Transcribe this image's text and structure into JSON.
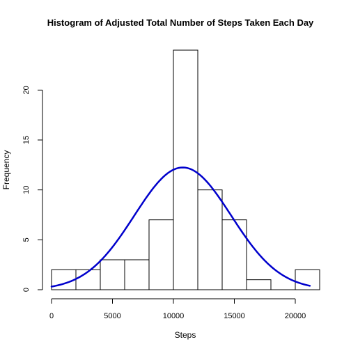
{
  "chart_data": {
    "type": "bar",
    "title": "Histogram of Adjusted Total Number of Steps Taken Each Day",
    "xlabel": "Steps",
    "ylabel": "Frequency",
    "xlim": [
      0,
      22000
    ],
    "ylim": [
      0,
      24
    ],
    "bins": [
      {
        "from": 0,
        "to": 2000,
        "count": 2
      },
      {
        "from": 2000,
        "to": 4000,
        "count": 2
      },
      {
        "from": 4000,
        "to": 6000,
        "count": 3
      },
      {
        "from": 6000,
        "to": 8000,
        "count": 3
      },
      {
        "from": 8000,
        "to": 10000,
        "count": 7
      },
      {
        "from": 10000,
        "to": 12000,
        "count": 24
      },
      {
        "from": 12000,
        "to": 14000,
        "count": 10
      },
      {
        "from": 14000,
        "to": 16000,
        "count": 7
      },
      {
        "from": 16000,
        "to": 18000,
        "count": 1
      },
      {
        "from": 18000,
        "to": 20000,
        "count": 0
      },
      {
        "from": 20000,
        "to": 22000,
        "count": 2
      }
    ],
    "x_ticks": [
      0,
      5000,
      10000,
      15000,
      20000
    ],
    "y_ticks": [
      0,
      5,
      10,
      15,
      20
    ],
    "bar_fill": "#ffffff",
    "bar_stroke": "#000000",
    "density_curve": {
      "color": "#0000cc",
      "mean": 10766,
      "sd": 3974,
      "scale_count": 61,
      "bin_width": 2000,
      "x_range": [
        0,
        21194
      ]
    },
    "grid": false
  }
}
